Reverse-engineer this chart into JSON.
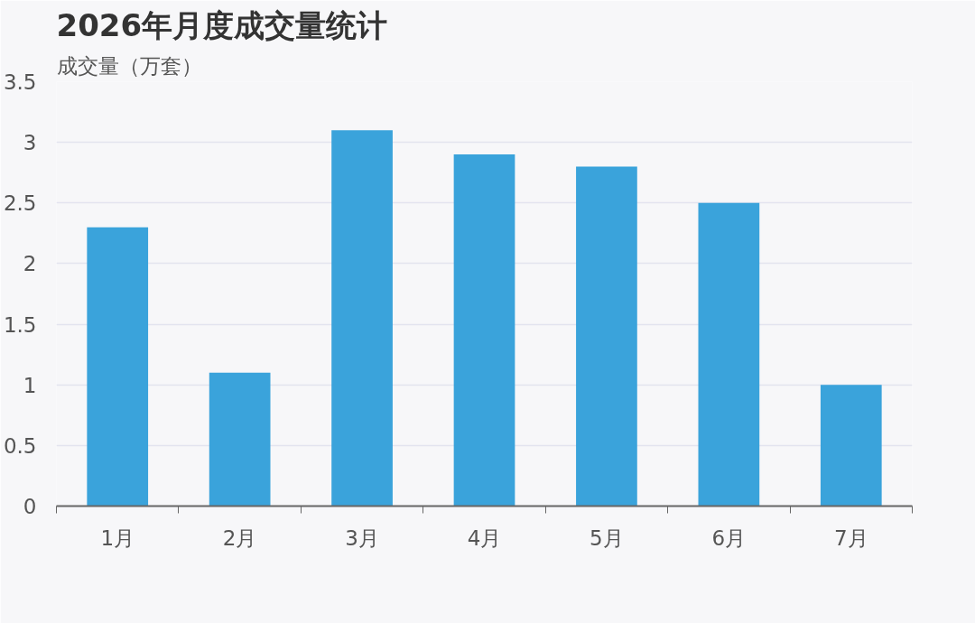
{
  "chart_data": {
    "type": "bar",
    "title": "2026年月度成交量统计",
    "ylabel": "成交量（万套）",
    "categories": [
      "1月",
      "2月",
      "3月",
      "4月",
      "5月",
      "6月",
      "7月"
    ],
    "values": [
      2.3,
      1.1,
      3.1,
      2.9,
      2.8,
      2.5,
      1.0
    ],
    "color": "#3aa3db",
    "ylim": [
      0,
      3.5
    ],
    "yticks": [
      0,
      0.5,
      1,
      1.5,
      2,
      2.5,
      3,
      3.5
    ],
    "grid": "y"
  }
}
